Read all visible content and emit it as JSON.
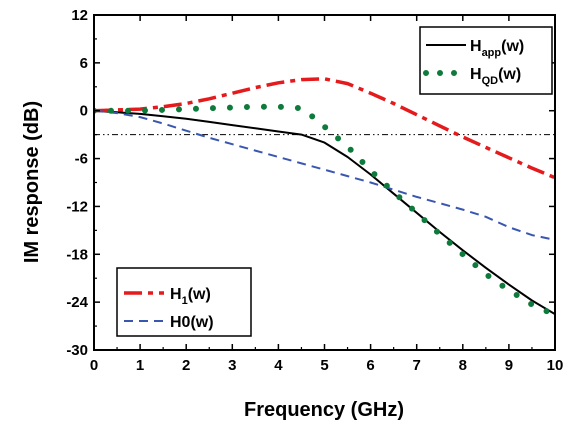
{
  "chart_data": {
    "type": "line",
    "title": "",
    "xlabel": "Frequency (GHz)",
    "ylabel": "IM response (dB)",
    "xlim": [
      0,
      10
    ],
    "ylim": [
      -30,
      12
    ],
    "x_ticks": [
      0,
      1,
      2,
      3,
      4,
      5,
      6,
      7,
      8,
      9,
      10
    ],
    "y_ticks": [
      12,
      6,
      0,
      -6,
      -12,
      -18,
      -24,
      -30
    ],
    "x_tick_labels": [
      "0",
      "1",
      "2",
      "3",
      "4",
      "5",
      "6",
      "7",
      "8",
      "9",
      "10"
    ],
    "y_tick_labels": [
      "12",
      "6",
      "0",
      "-6",
      "-12",
      "-18",
      "-24",
      "-30"
    ],
    "grid": false,
    "reference_line": {
      "y": -3,
      "style": "dash-dot-dot",
      "color": "#000000"
    },
    "legends": [
      {
        "placement": "top-right",
        "entries": [
          0,
          1
        ]
      },
      {
        "placement": "bottom-left",
        "entries": [
          2,
          3
        ]
      }
    ],
    "series": [
      {
        "name": "app",
        "legend_main": "H",
        "legend_sub": "app",
        "legend_tail": "(w)",
        "style": "solid",
        "color": "#000000",
        "x": [
          0,
          0.5,
          1,
          1.5,
          2,
          2.5,
          3,
          3.5,
          4,
          4.5,
          5,
          5.5,
          6,
          6.5,
          7,
          7.5,
          8,
          8.5,
          9,
          9.5,
          10
        ],
        "y": [
          0,
          -0.2,
          -0.4,
          -0.7,
          -1.0,
          -1.4,
          -1.8,
          -2.2,
          -2.6,
          -3.0,
          -4.0,
          -5.8,
          -8.0,
          -10.4,
          -12.8,
          -15.2,
          -17.5,
          -19.7,
          -21.8,
          -23.8,
          -25.5
        ]
      },
      {
        "name": "QD",
        "legend_main": "H",
        "legend_sub": "QD",
        "legend_tail": "(w)",
        "style": "dotted",
        "color": "#0e7a3c",
        "x": [
          0,
          0.5,
          1,
          1.5,
          2,
          2.5,
          3,
          3.5,
          4,
          4.5,
          4.8,
          5.1,
          5.3,
          5.5,
          6,
          6.5,
          7,
          7.5,
          8,
          8.5,
          9,
          9.5,
          10
        ],
        "y": [
          0,
          0,
          0,
          0.1,
          0.2,
          0.3,
          0.4,
          0.5,
          0.5,
          0.3,
          -1.0,
          -2.5,
          -3.5,
          -4.5,
          -7.5,
          -10.2,
          -12.8,
          -15.5,
          -18.0,
          -20.5,
          -22.5,
          -24.3,
          -25.6
        ]
      },
      {
        "name": "H1(w)",
        "legend_main": "H",
        "legend_sub": "1",
        "legend_tail": "(w)",
        "style": "dash-dot",
        "color": "#e41a1c",
        "x": [
          0,
          0.5,
          1,
          1.5,
          2,
          2.5,
          3,
          3.5,
          4,
          4.5,
          5,
          5.5,
          6,
          6.5,
          7,
          7.5,
          8,
          8.5,
          9,
          9.5,
          10
        ],
        "y": [
          0,
          0.1,
          0.2,
          0.5,
          0.9,
          1.5,
          2.2,
          2.9,
          3.5,
          3.9,
          4.0,
          3.4,
          2.2,
          0.9,
          -0.5,
          -1.9,
          -3.3,
          -4.6,
          -5.9,
          -7.2,
          -8.4
        ]
      },
      {
        "name": "H0(w)",
        "legend_main": "H0(w)",
        "legend_sub": "",
        "legend_tail": "",
        "style": "dashed",
        "color": "#3a57b0",
        "x": [
          0,
          0.5,
          1,
          1.5,
          2,
          2.5,
          3,
          3.5,
          4,
          4.5,
          5,
          5.5,
          6,
          6.5,
          7,
          7.5,
          8,
          8.5,
          9,
          9.5,
          10
        ],
        "y": [
          0,
          -0.3,
          -0.8,
          -1.6,
          -2.5,
          -3.4,
          -4.2,
          -5.0,
          -5.8,
          -6.6,
          -7.4,
          -8.2,
          -9.0,
          -9.9,
          -10.8,
          -11.6,
          -12.4,
          -13.3,
          -14.6,
          -15.6,
          -16.2
        ]
      }
    ]
  }
}
